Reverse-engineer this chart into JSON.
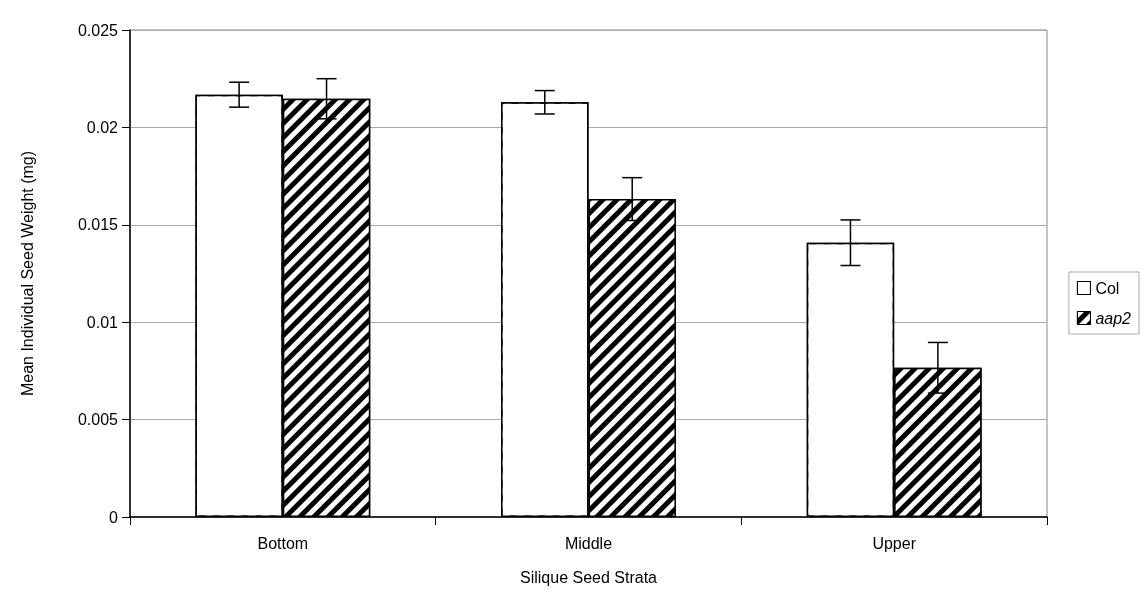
{
  "chart_data": {
    "type": "bar",
    "xlabel": "Silique Seed Strata",
    "ylabel": "Mean Individual Seed Weight (mg)",
    "categories": [
      "Bottom",
      "Middle",
      "Upper"
    ],
    "series": [
      {
        "name": "Col",
        "color": "#ffffff",
        "values": [
          0.02168,
          0.02129,
          0.01408
        ],
        "errors": [
          0.00064,
          0.0006,
          0.00117
        ]
      },
      {
        "name": "aap2",
        "color": "#000000",
        "values": [
          0.02147,
          0.01632,
          0.00766
        ],
        "errors": [
          0.00103,
          0.0011,
          0.0013
        ]
      }
    ],
    "ylim": [
      0,
      0.025
    ],
    "yticks": [
      0,
      0.005,
      0.01,
      0.015,
      0.02,
      0.025
    ],
    "grid": "y",
    "legend": "right"
  }
}
